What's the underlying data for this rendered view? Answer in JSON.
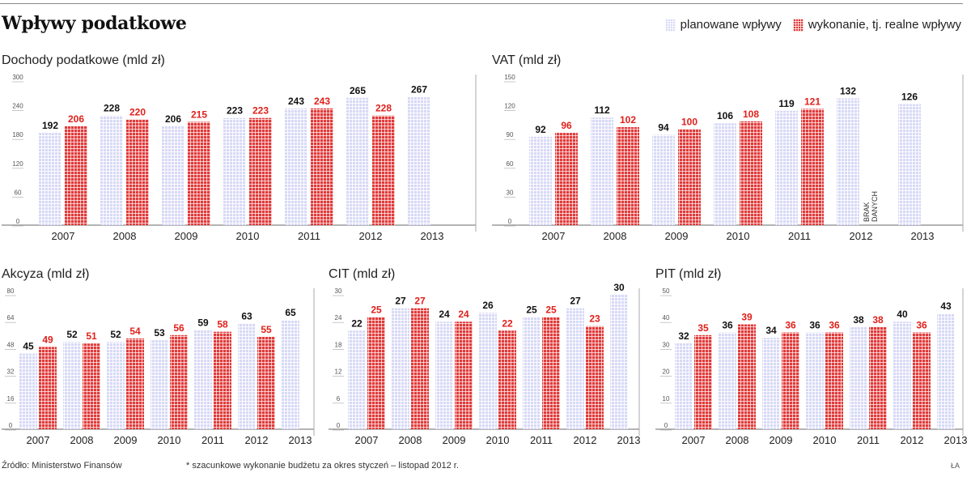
{
  "header": {
    "title": "Wpływy podatkowe",
    "legend": {
      "planned": "planowane wpływy",
      "actual": "wykonanie, tj. realne wpływy"
    }
  },
  "colors": {
    "planned": "#d7d9f6",
    "actual": "#e23a3a",
    "planned_label": "#111111",
    "actual_label": "#e0201b"
  },
  "chart_data": [
    {
      "id": "dochody",
      "type": "bar",
      "title": "Dochody podatkowe (mld zł)",
      "categories": [
        "2007",
        "2008",
        "2009",
        "2010",
        "2011",
        "2012",
        "2013"
      ],
      "yticks": [
        "0",
        "60",
        "120",
        "180",
        "240",
        "300"
      ],
      "ylim": [
        0,
        300
      ],
      "series": [
        {
          "name": "planowane wpływy",
          "values": [
            192,
            228,
            206,
            223,
            243,
            265,
            267
          ]
        },
        {
          "name": "wykonanie, tj. realne wpływy",
          "values": [
            206,
            220,
            215,
            223,
            243,
            228,
            null
          ]
        }
      ]
    },
    {
      "id": "vat",
      "type": "bar",
      "title": "VAT (mld zł)",
      "categories": [
        "2007",
        "2008",
        "2009",
        "2010",
        "2011",
        "2012",
        "2013"
      ],
      "yticks": [
        "0",
        "30",
        "60",
        "90",
        "120",
        "150"
      ],
      "ylim": [
        0,
        150
      ],
      "note": "BRAK DANYCH",
      "series": [
        {
          "name": "planowane wpływy",
          "values": [
            92,
            112,
            94,
            106,
            119,
            132,
            126
          ]
        },
        {
          "name": "wykonanie, tj. realne wpływy",
          "values": [
            96,
            102,
            100,
            108,
            121,
            null,
            null
          ]
        }
      ]
    },
    {
      "id": "akcyza",
      "type": "bar",
      "title": "Akcyza (mld zł)",
      "categories": [
        "2007",
        "2008",
        "2009",
        "2010",
        "2011",
        "2012",
        "2013"
      ],
      "yticks": [
        "0",
        "16",
        "32",
        "48",
        "64",
        "80"
      ],
      "ylim": [
        0,
        80
      ],
      "series": [
        {
          "name": "planowane wpływy",
          "values": [
            45,
            52,
            52,
            53,
            59,
            63,
            65
          ]
        },
        {
          "name": "wykonanie, tj. realne wpływy",
          "values": [
            49,
            51,
            54,
            56,
            58,
            55,
            null
          ]
        }
      ]
    },
    {
      "id": "cit",
      "type": "bar",
      "title": "CIT (mld zł)",
      "categories": [
        "2007",
        "2008",
        "2009",
        "2010",
        "2011",
        "2012",
        "2013"
      ],
      "yticks": [
        "0",
        "6",
        "12",
        "18",
        "24",
        "30"
      ],
      "ylim": [
        0,
        30
      ],
      "series": [
        {
          "name": "planowane wpływy",
          "values": [
            22,
            27,
            24,
            26,
            25,
            27,
            30
          ]
        },
        {
          "name": "wykonanie, tj. realne wpływy",
          "values": [
            25,
            27,
            24,
            22,
            25,
            23,
            null
          ]
        }
      ]
    },
    {
      "id": "pit",
      "type": "bar",
      "title": "PIT (mld zł)",
      "categories": [
        "2007",
        "2008",
        "2009",
        "2010",
        "2011",
        "2012",
        "2013"
      ],
      "yticks": [
        "0",
        "10",
        "20",
        "30",
        "40",
        "50"
      ],
      "ylim": [
        0,
        50
      ],
      "series": [
        {
          "name": "planowane wpływy",
          "values": [
            32,
            36,
            34,
            36,
            38,
            40,
            43
          ]
        },
        {
          "name": "wykonanie, tj. realne wpływy",
          "values": [
            35,
            39,
            36,
            36,
            38,
            36,
            null
          ]
        }
      ]
    }
  ],
  "footer": {
    "source": "Źródło: Ministerstwo Finansów",
    "note": "* szacunkowe wykonanie budżetu za okres styczeń – listopad 2012 r.",
    "credit": "ŁA"
  }
}
